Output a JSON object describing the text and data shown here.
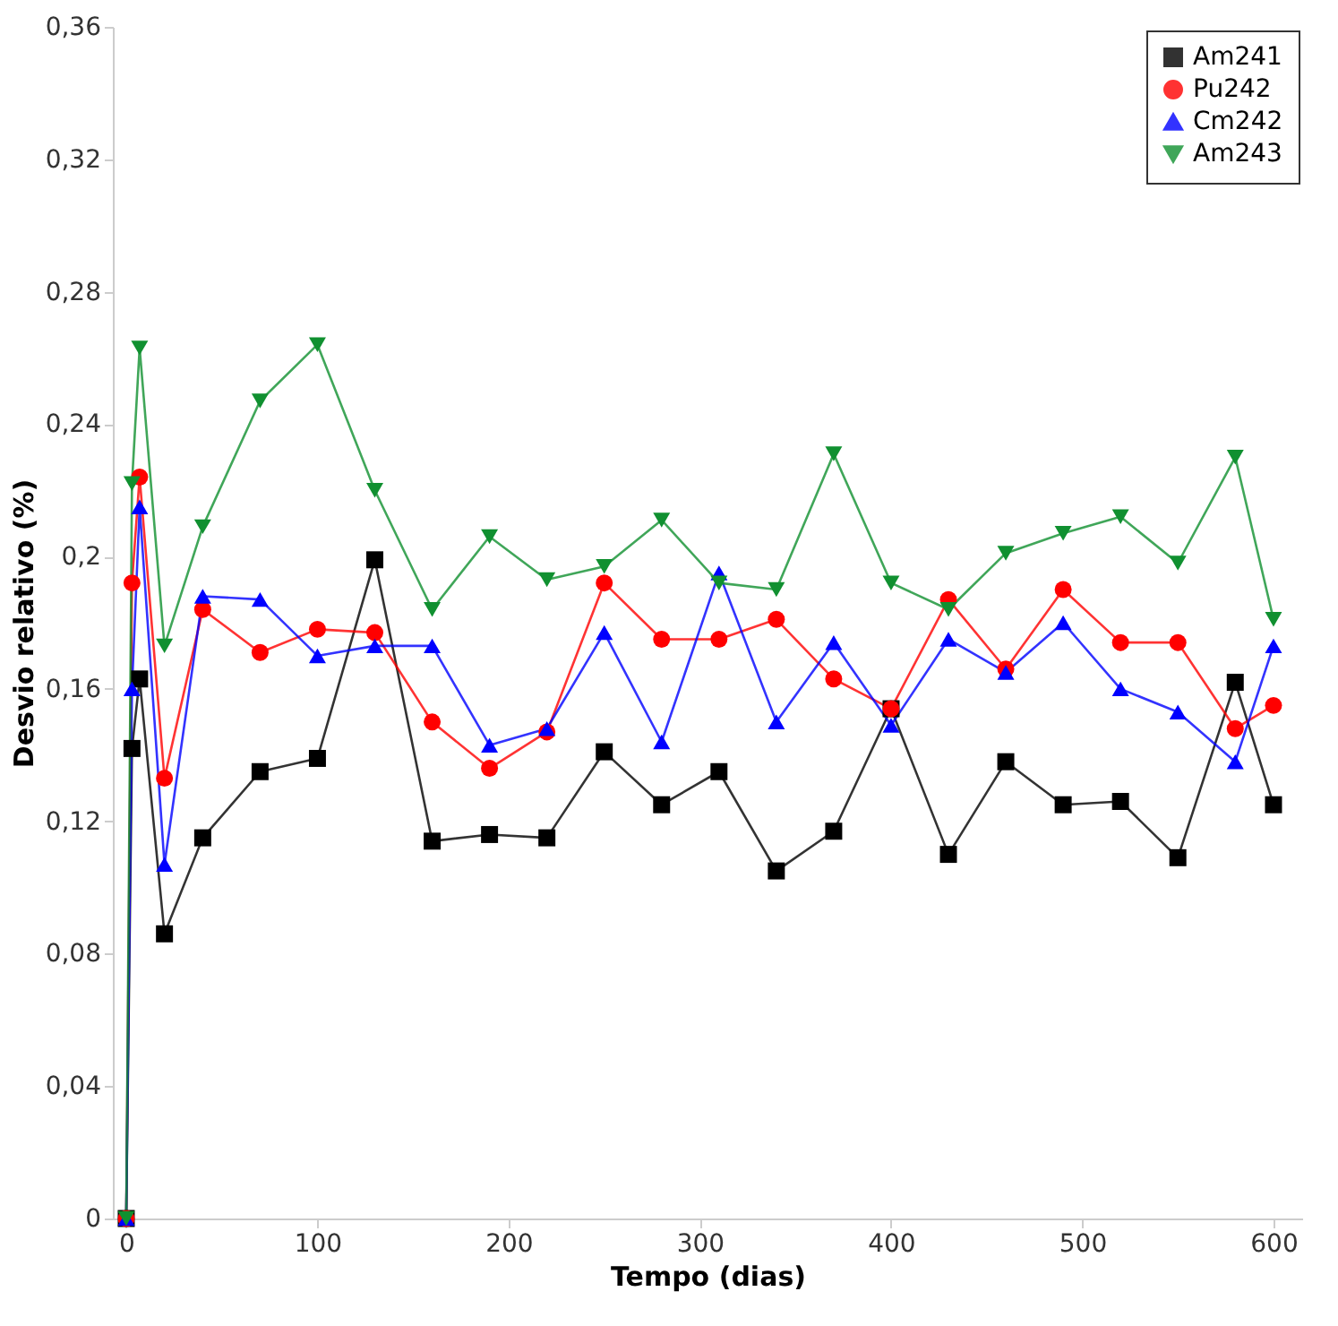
{
  "chart_data": {
    "type": "line",
    "xlabel": "Tempo (dias)",
    "ylabel": "Desvio relativo (%)",
    "x": [
      0,
      3,
      7,
      20,
      40,
      70,
      100,
      130,
      160,
      190,
      220,
      250,
      280,
      310,
      340,
      370,
      400,
      430,
      460,
      490,
      520,
      550,
      580,
      600
    ],
    "series": [
      {
        "name": "Am241",
        "color": "#000000",
        "marker": "square",
        "values": [
          0,
          0.142,
          0.163,
          0.086,
          0.115,
          0.135,
          0.139,
          0.199,
          0.114,
          0.116,
          0.115,
          0.141,
          0.125,
          0.135,
          0.105,
          0.117,
          0.154,
          0.11,
          0.138,
          0.125,
          0.126,
          0.109,
          0.162,
          0.125
        ]
      },
      {
        "name": "Pu242",
        "color": "#ff0000",
        "marker": "circle",
        "values": [
          0,
          0.192,
          0.224,
          0.133,
          0.184,
          0.171,
          0.178,
          0.177,
          0.15,
          0.136,
          0.147,
          0.192,
          0.175,
          0.175,
          0.181,
          0.163,
          0.154,
          0.187,
          0.166,
          0.19,
          0.174,
          0.174,
          0.148,
          0.155
        ]
      },
      {
        "name": "Cm242",
        "color": "#0000ff",
        "marker": "triangle",
        "values": [
          0,
          0.16,
          0.215,
          0.107,
          0.188,
          0.187,
          0.17,
          0.173,
          0.173,
          0.143,
          0.148,
          0.177,
          0.144,
          0.195,
          0.15,
          0.174,
          0.149,
          0.175,
          0.165,
          0.18,
          0.16,
          0.153,
          0.138,
          0.173
        ]
      },
      {
        "name": "Am243",
        "color": "#109030",
        "marker": "triangle-down",
        "values": [
          0,
          0.222,
          0.263,
          0.173,
          0.209,
          0.247,
          0.264,
          0.22,
          0.184,
          0.206,
          0.193,
          0.197,
          0.211,
          0.192,
          0.19,
          0.231,
          0.192,
          0.184,
          0.201,
          0.207,
          0.212,
          0.198,
          0.23,
          0.181
        ]
      }
    ],
    "xlim": [
      -7,
      615
    ],
    "xticks": [
      0,
      100,
      200,
      300,
      400,
      500,
      600
    ],
    "ylim": [
      0,
      0.36
    ],
    "yticks": [
      0,
      {
        "value": 0.04,
        "label": "0,04"
      },
      {
        "value": 0.08,
        "label": "0,08"
      },
      {
        "value": 0.12,
        "label": "0,12"
      },
      {
        "value": 0.16,
        "label": "0,16"
      },
      {
        "value": 0.2,
        "label": "0,2"
      },
      {
        "value": 0.24,
        "label": "0,24"
      },
      {
        "value": 0.28,
        "label": "0,28"
      },
      {
        "value": 0.32,
        "label": "0,32"
      },
      {
        "value": 0.36,
        "label": "0,36"
      }
    ],
    "legend": "top right",
    "grid": false,
    "line_style": "solid"
  }
}
